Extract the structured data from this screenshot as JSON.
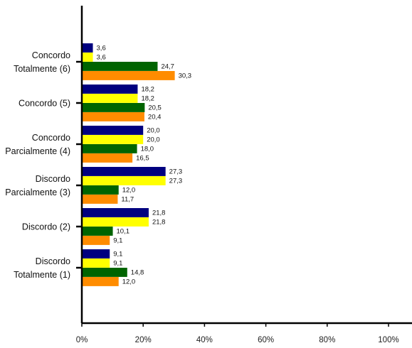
{
  "chart_data": {
    "type": "bar",
    "orientation": "horizontal",
    "categories": [
      "Concordo\nTotalmente (6)",
      "Concordo (5)",
      "Concordo\nParcialmente (4)",
      "Discordo\nParcialmente (3)",
      "Discordo (2)",
      "Discordo\nTotalmente (1)"
    ],
    "series": [
      {
        "color": "#00007F",
        "values": [
          3.6,
          18.2,
          20.0,
          27.3,
          21.8,
          9.1
        ],
        "labels": [
          "3,6",
          "18,2",
          "20,0",
          "27,3",
          "21,8",
          "9,1"
        ]
      },
      {
        "color": "#FFFF00",
        "values": [
          3.6,
          18.2,
          20.0,
          27.3,
          21.8,
          9.1
        ],
        "labels": [
          "3,6",
          "18,2",
          "20,0",
          "27,3",
          "21,8",
          "9,1"
        ]
      },
      {
        "color": "#006400",
        "values": [
          24.7,
          20.5,
          18.0,
          12.0,
          10.1,
          14.8
        ],
        "labels": [
          "24,7",
          "20,5",
          "18,0",
          "12,0",
          "10,1",
          "14,8"
        ]
      },
      {
        "color": "#FF8C00",
        "values": [
          30.3,
          20.4,
          16.5,
          11.7,
          9.1,
          12.0
        ],
        "labels": [
          "30,3",
          "20,4",
          "16,5",
          "11,7",
          "9,1",
          "12,0"
        ]
      }
    ],
    "xlim": [
      0,
      100
    ],
    "xticks": [
      "0%",
      "20%",
      "40%",
      "60%",
      "80%",
      "100%"
    ],
    "title": "",
    "xlabel": "",
    "ylabel": "",
    "grid": false,
    "legend": "none"
  }
}
